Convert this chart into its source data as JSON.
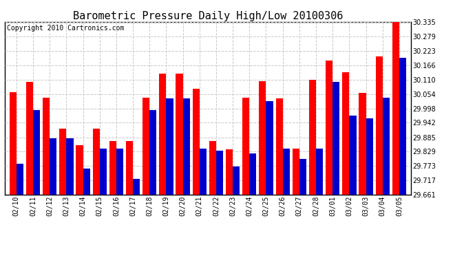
{
  "title": "Barometric Pressure Daily High/Low 20100306",
  "copyright": "Copyright 2010 Cartronics.com",
  "dates": [
    "02/10",
    "02/11",
    "02/12",
    "02/13",
    "02/14",
    "02/15",
    "02/16",
    "02/17",
    "02/18",
    "02/19",
    "02/20",
    "02/21",
    "02/22",
    "02/23",
    "02/24",
    "02/25",
    "02/26",
    "02/27",
    "02/28",
    "03/01",
    "03/02",
    "03/03",
    "03/04",
    "03/05"
  ],
  "highs": [
    30.06,
    30.1,
    30.04,
    29.92,
    29.855,
    29.92,
    29.87,
    29.87,
    30.04,
    30.133,
    30.133,
    30.075,
    29.87,
    29.838,
    30.04,
    30.105,
    30.038,
    29.84,
    30.11,
    30.185,
    30.14,
    30.058,
    30.2,
    30.338
  ],
  "lows": [
    29.782,
    29.99,
    29.882,
    29.882,
    29.762,
    29.84,
    29.84,
    29.722,
    29.99,
    30.038,
    30.038,
    29.84,
    29.832,
    29.772,
    29.822,
    30.025,
    29.84,
    29.8,
    29.84,
    30.1,
    29.97,
    29.96,
    30.04,
    30.195
  ],
  "ymin": 29.661,
  "ymax": 30.335,
  "yticks": [
    29.661,
    29.717,
    29.773,
    29.829,
    29.885,
    29.942,
    29.998,
    30.054,
    30.11,
    30.166,
    30.223,
    30.279,
    30.335
  ],
  "high_color": "#ff0000",
  "low_color": "#0000cc",
  "bg_color": "#ffffff",
  "grid_color": "#c8c8c8",
  "title_fontsize": 11,
  "copyright_fontsize": 7,
  "tick_fontsize": 7,
  "xtick_fontsize": 7
}
